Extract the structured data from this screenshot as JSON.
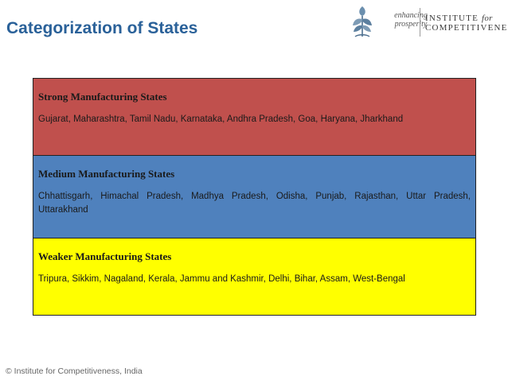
{
  "header": {
    "title": "Categorization of States"
  },
  "logo": {
    "icon": "wheat-leaf-logo-icon",
    "tagline_line1": "enhancing",
    "tagline_line2": "prosperity",
    "name_line1": "INSTITUTE",
    "name_for": "for",
    "name_line2": "COMPETITIVENESS"
  },
  "categories": [
    {
      "heading": "Strong Manufacturing States",
      "states": "Gujarat, Maharashtra, Tamil Nadu, Karnataka, Andhra Pradesh, Goa, Haryana, Jharkhand",
      "color": "#c0504d"
    },
    {
      "heading": "Medium Manufacturing States",
      "states": "Chhattisgarh, Himachal Pradesh, Madhya Pradesh, Odisha, Punjab, Rajasthan, Uttar Pradesh, Uttarakhand",
      "color": "#4f81bd"
    },
    {
      "heading": "Weaker Manufacturing States",
      "states": "Tripura, Sikkim, Nagaland, Kerala, Jammu and Kashmir, Delhi, Bihar, Assam, West-Bengal",
      "color": "#ffff00"
    }
  ],
  "footer": {
    "copyright": "© Institute for Competitiveness, India"
  },
  "colors": {
    "title": "#2a6199",
    "border": "#222222"
  }
}
